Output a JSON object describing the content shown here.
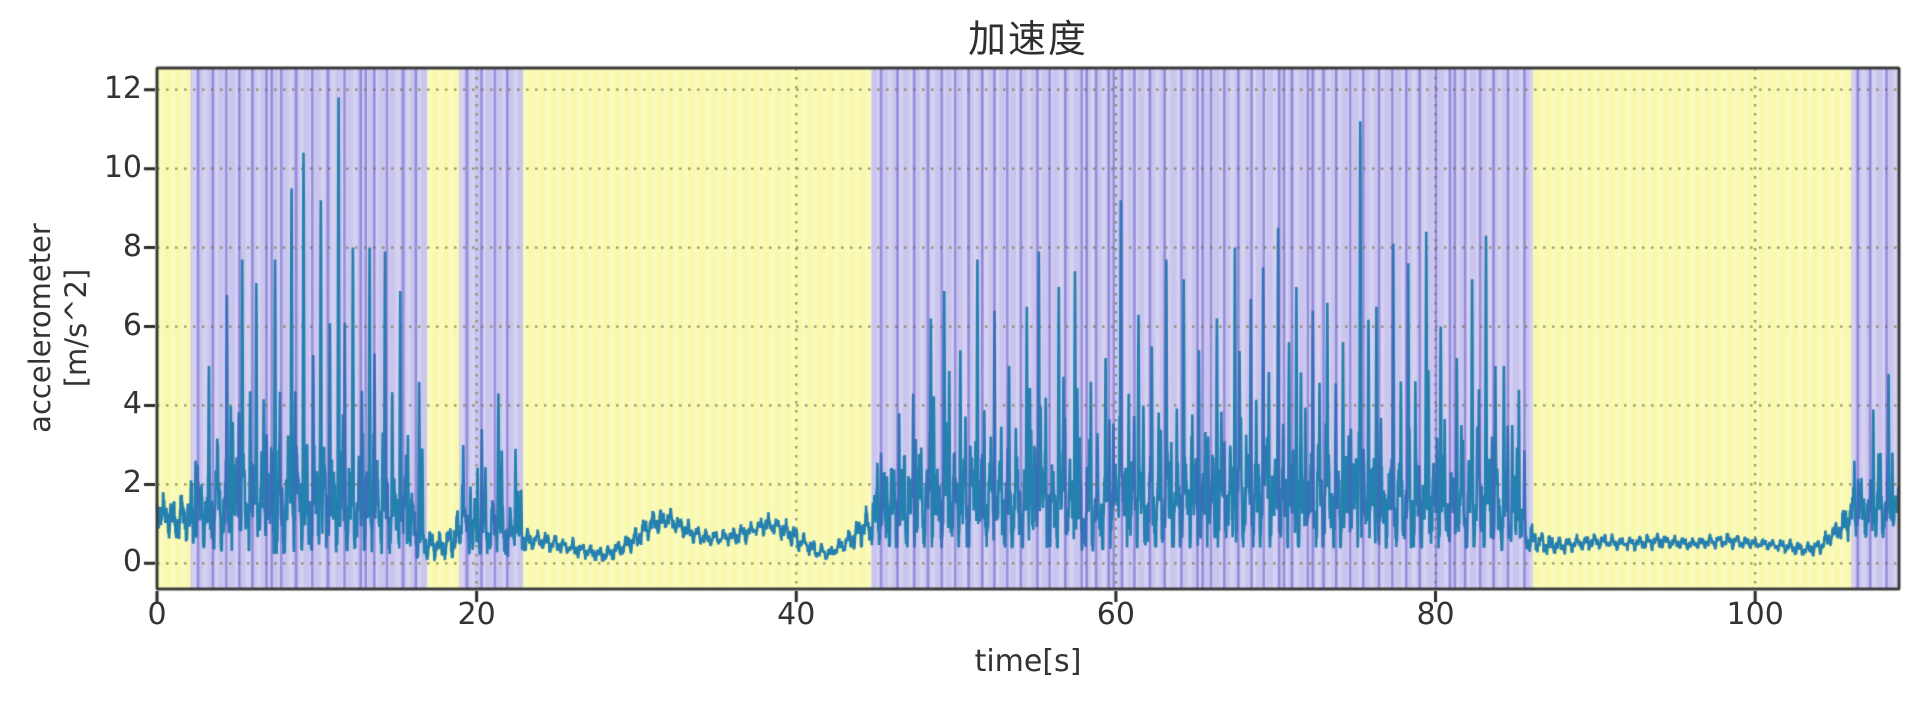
{
  "figure": {
    "background": "#ffffff"
  },
  "colors": {
    "grid": "#80804a",
    "spine": "#3c3c3c",
    "tick": "#2b2b2b",
    "text": "#333333",
    "title": "#2e2e2e"
  },
  "chart_data": {
    "type": "line",
    "title": "加速度",
    "xlabel": "time[s]",
    "ylabel": "accelerometer",
    "ylabel_units": "[m/s^2]",
    "xlim": [
      0,
      109
    ],
    "ylim": [
      -0.65,
      12.55
    ],
    "x_ticks": [
      0,
      20,
      40,
      60,
      80,
      100
    ],
    "y_ticks": [
      0,
      2,
      4,
      6,
      8,
      10,
      12
    ],
    "grid": true,
    "grid_style": "dotted",
    "line_color": "#2680af",
    "region_colors": {
      "idle": "#f9f9ae",
      "active": "#c9c5ee"
    },
    "active_stripe_color": "#5b51c9",
    "regions": [
      {
        "start": 0,
        "end": 2.1,
        "type": "idle"
      },
      {
        "start": 2.1,
        "end": 16.9,
        "type": "active"
      },
      {
        "start": 16.9,
        "end": 18.9,
        "type": "idle"
      },
      {
        "start": 18.9,
        "end": 22.9,
        "type": "active"
      },
      {
        "start": 22.9,
        "end": 44.7,
        "type": "idle"
      },
      {
        "start": 44.7,
        "end": 86.1,
        "type": "active"
      },
      {
        "start": 86.1,
        "end": 106.0,
        "type": "idle"
      },
      {
        "start": 106.0,
        "end": 109,
        "type": "active"
      }
    ],
    "envelope_per_second": [
      [
        1.0,
        1.9,
        1.9
      ],
      [
        0.7,
        1.6,
        1.6
      ],
      [
        0.6,
        1.9,
        2.6
      ],
      [
        0.5,
        2.3,
        5.0
      ],
      [
        0.4,
        2.5,
        6.8
      ],
      [
        0.4,
        2.7,
        7.7
      ],
      [
        0.4,
        2.7,
        7.1
      ],
      [
        0.3,
        2.6,
        7.7
      ],
      [
        0.3,
        2.7,
        9.5
      ],
      [
        0.4,
        2.8,
        10.4
      ],
      [
        0.4,
        2.8,
        9.2
      ],
      [
        0.3,
        2.7,
        11.8
      ],
      [
        0.4,
        2.6,
        8.0
      ],
      [
        0.4,
        2.5,
        8.0
      ],
      [
        0.3,
        2.4,
        7.9
      ],
      [
        0.3,
        2.2,
        6.9
      ],
      [
        0.2,
        1.8,
        4.6
      ],
      [
        0.1,
        0.9,
        1.2
      ],
      [
        0.1,
        0.8,
        1.5
      ],
      [
        0.3,
        1.4,
        3.0
      ],
      [
        0.3,
        1.5,
        3.4
      ],
      [
        0.3,
        1.6,
        4.3
      ],
      [
        0.2,
        1.4,
        2.9
      ],
      [
        0.3,
        0.9,
        0.9
      ],
      [
        0.4,
        0.8,
        0.8
      ],
      [
        0.3,
        0.7,
        0.7
      ],
      [
        0.2,
        0.6,
        0.6
      ],
      [
        0.1,
        0.5,
        0.5
      ],
      [
        0.05,
        0.4,
        0.4
      ],
      [
        0.2,
        0.6,
        0.6
      ],
      [
        0.4,
        0.9,
        0.9
      ],
      [
        0.8,
        1.3,
        1.3
      ],
      [
        0.9,
        1.4,
        1.4
      ],
      [
        0.7,
        1.1,
        1.1
      ],
      [
        0.5,
        0.9,
        0.9
      ],
      [
        0.5,
        0.8,
        0.8
      ],
      [
        0.5,
        0.9,
        0.9
      ],
      [
        0.6,
        1.0,
        1.0
      ],
      [
        0.8,
        1.25,
        1.25
      ],
      [
        0.7,
        1.2,
        1.2
      ],
      [
        0.4,
        0.9,
        0.9
      ],
      [
        0.2,
        0.6,
        0.6
      ],
      [
        0.1,
        0.4,
        0.4
      ],
      [
        0.3,
        0.7,
        0.7
      ],
      [
        0.5,
        1.2,
        1.8
      ],
      [
        0.6,
        2.0,
        2.8
      ],
      [
        0.5,
        2.4,
        3.8
      ],
      [
        0.5,
        2.5,
        4.3
      ],
      [
        0.5,
        2.6,
        6.2
      ],
      [
        0.5,
        2.7,
        6.9
      ],
      [
        0.5,
        2.6,
        5.4
      ],
      [
        0.5,
        2.7,
        7.7
      ],
      [
        0.5,
        2.6,
        6.4
      ],
      [
        0.5,
        2.5,
        5.0
      ],
      [
        0.5,
        2.6,
        6.5
      ],
      [
        0.5,
        2.8,
        7.9
      ],
      [
        0.5,
        2.7,
        7.0
      ],
      [
        0.5,
        2.6,
        7.4
      ],
      [
        0.4,
        2.4,
        4.6
      ],
      [
        0.4,
        2.5,
        5.2
      ],
      [
        0.5,
        2.7,
        9.2
      ],
      [
        0.5,
        2.6,
        6.3
      ],
      [
        0.5,
        2.5,
        5.5
      ],
      [
        0.5,
        2.7,
        7.7
      ],
      [
        0.5,
        2.7,
        7.2
      ],
      [
        0.5,
        2.5,
        5.4
      ],
      [
        0.5,
        2.6,
        6.2
      ],
      [
        0.5,
        2.8,
        8.0
      ],
      [
        0.5,
        2.7,
        6.7
      ],
      [
        0.5,
        2.7,
        7.5
      ],
      [
        0.5,
        2.9,
        8.5
      ],
      [
        0.5,
        2.8,
        7.0
      ],
      [
        0.5,
        2.6,
        6.4
      ],
      [
        0.5,
        2.6,
        6.6
      ],
      [
        0.5,
        2.5,
        5.6
      ],
      [
        0.5,
        2.8,
        11.2
      ],
      [
        0.5,
        2.6,
        6.5
      ],
      [
        0.5,
        2.8,
        8.1
      ],
      [
        0.5,
        2.7,
        7.6
      ],
      [
        0.5,
        2.8,
        8.4
      ],
      [
        0.5,
        2.6,
        6.0
      ],
      [
        0.4,
        2.5,
        5.2
      ],
      [
        0.5,
        2.6,
        7.2
      ],
      [
        0.5,
        2.7,
        8.3
      ],
      [
        0.4,
        2.3,
        5.0
      ],
      [
        0.3,
        2.0,
        4.4
      ],
      [
        0.3,
        1.0,
        1.2
      ],
      [
        0.25,
        0.7,
        0.7
      ],
      [
        0.3,
        0.65,
        0.65
      ],
      [
        0.35,
        0.7,
        0.7
      ],
      [
        0.4,
        0.75,
        0.75
      ],
      [
        0.4,
        0.7,
        0.7
      ],
      [
        0.35,
        0.65,
        0.65
      ],
      [
        0.4,
        0.7,
        0.7
      ],
      [
        0.4,
        0.75,
        0.75
      ],
      [
        0.4,
        0.7,
        0.7
      ],
      [
        0.35,
        0.65,
        0.65
      ],
      [
        0.4,
        0.7,
        0.7
      ],
      [
        0.45,
        0.75,
        0.75
      ],
      [
        0.4,
        0.7,
        0.7
      ],
      [
        0.4,
        0.65,
        0.65
      ],
      [
        0.35,
        0.6,
        0.6
      ],
      [
        0.3,
        0.6,
        0.6
      ],
      [
        0.2,
        0.5,
        0.5
      ],
      [
        0.25,
        0.6,
        0.6
      ],
      [
        0.6,
        1.0,
        1.0
      ],
      [
        0.7,
        1.8,
        2.6
      ],
      [
        0.7,
        2.0,
        3.9
      ],
      [
        0.8,
        2.0,
        4.8
      ]
    ]
  }
}
